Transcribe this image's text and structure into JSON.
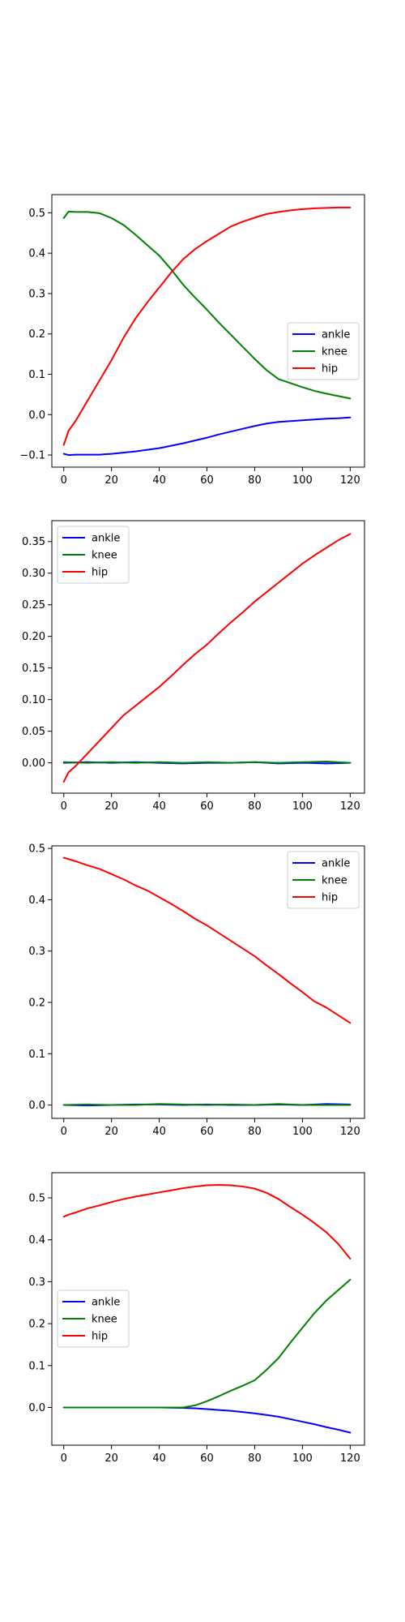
{
  "chart_data": [
    {
      "type": "line",
      "x_ticks": [
        0,
        20,
        40,
        60,
        80,
        100,
        120
      ],
      "y_ticks": [
        -0.1,
        0.0,
        0.1,
        0.2,
        0.3,
        0.4,
        0.5
      ],
      "y_tick_labels": [
        "−0.1",
        "0.0",
        "0.1",
        "0.2",
        "0.3",
        "0.4",
        "0.5"
      ],
      "xlim": [
        -5,
        126
      ],
      "ylim": [
        -0.13,
        0.545
      ],
      "legend_position": "center-right",
      "series": [
        {
          "name": "ankle",
          "color": "#0000ff",
          "x": [
            0,
            2,
            5,
            10,
            15,
            20,
            25,
            30,
            35,
            40,
            45,
            50,
            55,
            60,
            65,
            70,
            75,
            80,
            85,
            90,
            95,
            100,
            105,
            110,
            115,
            120
          ],
          "y": [
            -0.097,
            -0.1,
            -0.099,
            -0.099,
            -0.099,
            -0.097,
            -0.094,
            -0.091,
            -0.087,
            -0.083,
            -0.077,
            -0.071,
            -0.064,
            -0.057,
            -0.049,
            -0.042,
            -0.035,
            -0.028,
            -0.022,
            -0.018,
            -0.016,
            -0.014,
            -0.012,
            -0.01,
            -0.009,
            -0.007
          ]
        },
        {
          "name": "knee",
          "color": "#008000",
          "x": [
            0,
            2,
            5,
            10,
            15,
            20,
            25,
            30,
            35,
            40,
            45,
            50,
            55,
            60,
            65,
            70,
            75,
            80,
            85,
            90,
            95,
            100,
            105,
            110,
            115,
            120
          ],
          "y": [
            0.487,
            0.503,
            0.502,
            0.502,
            0.499,
            0.487,
            0.47,
            0.446,
            0.42,
            0.394,
            0.36,
            0.322,
            0.29,
            0.26,
            0.228,
            0.198,
            0.168,
            0.138,
            0.11,
            0.088,
            0.078,
            0.068,
            0.059,
            0.052,
            0.046,
            0.04
          ]
        },
        {
          "name": "hip",
          "color": "#ff0000",
          "x": [
            0,
            2,
            5,
            10,
            15,
            20,
            25,
            30,
            35,
            40,
            45,
            50,
            55,
            60,
            65,
            70,
            75,
            80,
            85,
            90,
            95,
            100,
            105,
            110,
            115,
            120
          ],
          "y": [
            -0.075,
            -0.04,
            -0.015,
            0.035,
            0.085,
            0.135,
            0.19,
            0.238,
            0.278,
            0.315,
            0.352,
            0.385,
            0.41,
            0.43,
            0.448,
            0.466,
            0.478,
            0.488,
            0.497,
            0.502,
            0.506,
            0.509,
            0.511,
            0.512,
            0.513,
            0.513
          ]
        }
      ]
    },
    {
      "type": "line",
      "x_ticks": [
        0,
        20,
        40,
        60,
        80,
        100,
        120
      ],
      "y_ticks": [
        0.0,
        0.05,
        0.1,
        0.15,
        0.2,
        0.25,
        0.3,
        0.35
      ],
      "y_tick_labels": [
        "0.00",
        "0.05",
        "0.10",
        "0.15",
        "0.20",
        "0.25",
        "0.30",
        "0.35"
      ],
      "xlim": [
        -5,
        126
      ],
      "ylim": [
        -0.048,
        0.383
      ],
      "legend_position": "upper-left",
      "series": [
        {
          "name": "ankle",
          "color": "#0000ff",
          "x": [
            0,
            10,
            20,
            30,
            40,
            50,
            60,
            70,
            80,
            90,
            100,
            110,
            120
          ],
          "y": [
            0.0,
            0.001,
            0.0,
            0.001,
            0.0,
            -0.001,
            0.0,
            0.0,
            0.001,
            -0.001,
            0.0,
            -0.001,
            0.0
          ]
        },
        {
          "name": "knee",
          "color": "#008000",
          "x": [
            0,
            10,
            20,
            30,
            40,
            50,
            60,
            70,
            80,
            90,
            100,
            110,
            120
          ],
          "y": [
            0.001,
            0.0,
            0.001,
            0.0,
            0.001,
            0.0,
            0.001,
            0.0,
            0.001,
            0.0,
            0.001,
            0.002,
            0.0
          ]
        },
        {
          "name": "hip",
          "color": "#ff0000",
          "x": [
            0,
            2,
            5,
            10,
            15,
            20,
            25,
            30,
            35,
            40,
            45,
            50,
            55,
            60,
            65,
            70,
            75,
            80,
            85,
            90,
            95,
            100,
            105,
            110,
            115,
            120
          ],
          "y": [
            -0.03,
            -0.015,
            -0.005,
            0.015,
            0.035,
            0.055,
            0.075,
            0.09,
            0.105,
            0.12,
            0.137,
            0.155,
            0.172,
            0.187,
            0.205,
            0.222,
            0.238,
            0.255,
            0.27,
            0.285,
            0.3,
            0.315,
            0.328,
            0.34,
            0.352,
            0.362
          ]
        }
      ]
    },
    {
      "type": "line",
      "x_ticks": [
        0,
        20,
        40,
        60,
        80,
        100,
        120
      ],
      "y_ticks": [
        0.0,
        0.1,
        0.2,
        0.3,
        0.4,
        0.5
      ],
      "y_tick_labels": [
        "0.0",
        "0.1",
        "0.2",
        "0.3",
        "0.4",
        "0.5"
      ],
      "xlim": [
        -5,
        126
      ],
      "ylim": [
        -0.026,
        0.505
      ],
      "legend_position": "upper-right",
      "series": [
        {
          "name": "ankle",
          "color": "#0000ff",
          "x": [
            0,
            10,
            20,
            30,
            40,
            50,
            60,
            70,
            80,
            90,
            100,
            110,
            120
          ],
          "y": [
            0.0,
            -0.001,
            0.0,
            0.001,
            0.001,
            0.0,
            0.001,
            0.0,
            0.0,
            0.001,
            0.0,
            0.002,
            0.001
          ]
        },
        {
          "name": "knee",
          "color": "#008000",
          "x": [
            0,
            10,
            20,
            30,
            40,
            50,
            60,
            70,
            80,
            90,
            100,
            110,
            120
          ],
          "y": [
            0.0,
            0.001,
            0.0,
            0.0,
            0.002,
            0.001,
            0.0,
            0.001,
            0.0,
            0.002,
            0.0,
            0.0,
            0.0
          ]
        },
        {
          "name": "hip",
          "color": "#ff0000",
          "x": [
            0,
            5,
            10,
            15,
            20,
            25,
            30,
            35,
            40,
            45,
            50,
            55,
            60,
            65,
            70,
            75,
            80,
            85,
            90,
            95,
            100,
            105,
            110,
            115,
            120
          ],
          "y": [
            0.482,
            0.475,
            0.467,
            0.46,
            0.45,
            0.44,
            0.428,
            0.418,
            0.405,
            0.392,
            0.378,
            0.363,
            0.35,
            0.335,
            0.32,
            0.305,
            0.29,
            0.272,
            0.255,
            0.237,
            0.22,
            0.202,
            0.19,
            0.175,
            0.16
          ]
        }
      ]
    },
    {
      "type": "line",
      "x_ticks": [
        0,
        20,
        40,
        60,
        80,
        100,
        120
      ],
      "y_ticks": [
        0.0,
        0.1,
        0.2,
        0.3,
        0.4,
        0.5
      ],
      "y_tick_labels": [
        "0.0",
        "0.1",
        "0.2",
        "0.3",
        "0.4",
        "0.5"
      ],
      "xlim": [
        -5,
        126
      ],
      "ylim": [
        -0.09,
        0.56
      ],
      "legend_position": "center-left",
      "series": [
        {
          "name": "ankle",
          "color": "#0000ff",
          "x": [
            0,
            10,
            20,
            30,
            40,
            50,
            55,
            60,
            65,
            70,
            75,
            80,
            85,
            90,
            95,
            100,
            105,
            110,
            115,
            120
          ],
          "y": [
            0.0,
            0.0,
            0.0,
            0.0,
            0.0,
            -0.001,
            -0.002,
            -0.004,
            -0.006,
            -0.008,
            -0.011,
            -0.014,
            -0.018,
            -0.022,
            -0.028,
            -0.034,
            -0.04,
            -0.047,
            -0.053,
            -0.06
          ]
        },
        {
          "name": "knee",
          "color": "#008000",
          "x": [
            0,
            10,
            20,
            30,
            40,
            50,
            55,
            60,
            65,
            70,
            75,
            80,
            85,
            90,
            95,
            100,
            105,
            110,
            115,
            120
          ],
          "y": [
            0.0,
            0.0,
            0.0,
            0.0,
            0.0,
            0.0,
            0.005,
            0.015,
            0.027,
            0.04,
            0.052,
            0.065,
            0.09,
            0.118,
            0.155,
            0.19,
            0.225,
            0.255,
            0.28,
            0.305
          ]
        },
        {
          "name": "hip",
          "color": "#ff0000",
          "x": [
            0,
            2,
            5,
            10,
            15,
            20,
            25,
            30,
            35,
            40,
            45,
            50,
            55,
            60,
            65,
            70,
            75,
            80,
            85,
            90,
            95,
            100,
            105,
            110,
            115,
            120
          ],
          "y": [
            0.455,
            0.46,
            0.465,
            0.475,
            0.482,
            0.49,
            0.497,
            0.503,
            0.508,
            0.513,
            0.518,
            0.523,
            0.527,
            0.53,
            0.531,
            0.53,
            0.527,
            0.522,
            0.512,
            0.497,
            0.478,
            0.46,
            0.44,
            0.418,
            0.39,
            0.355
          ]
        }
      ]
    }
  ]
}
